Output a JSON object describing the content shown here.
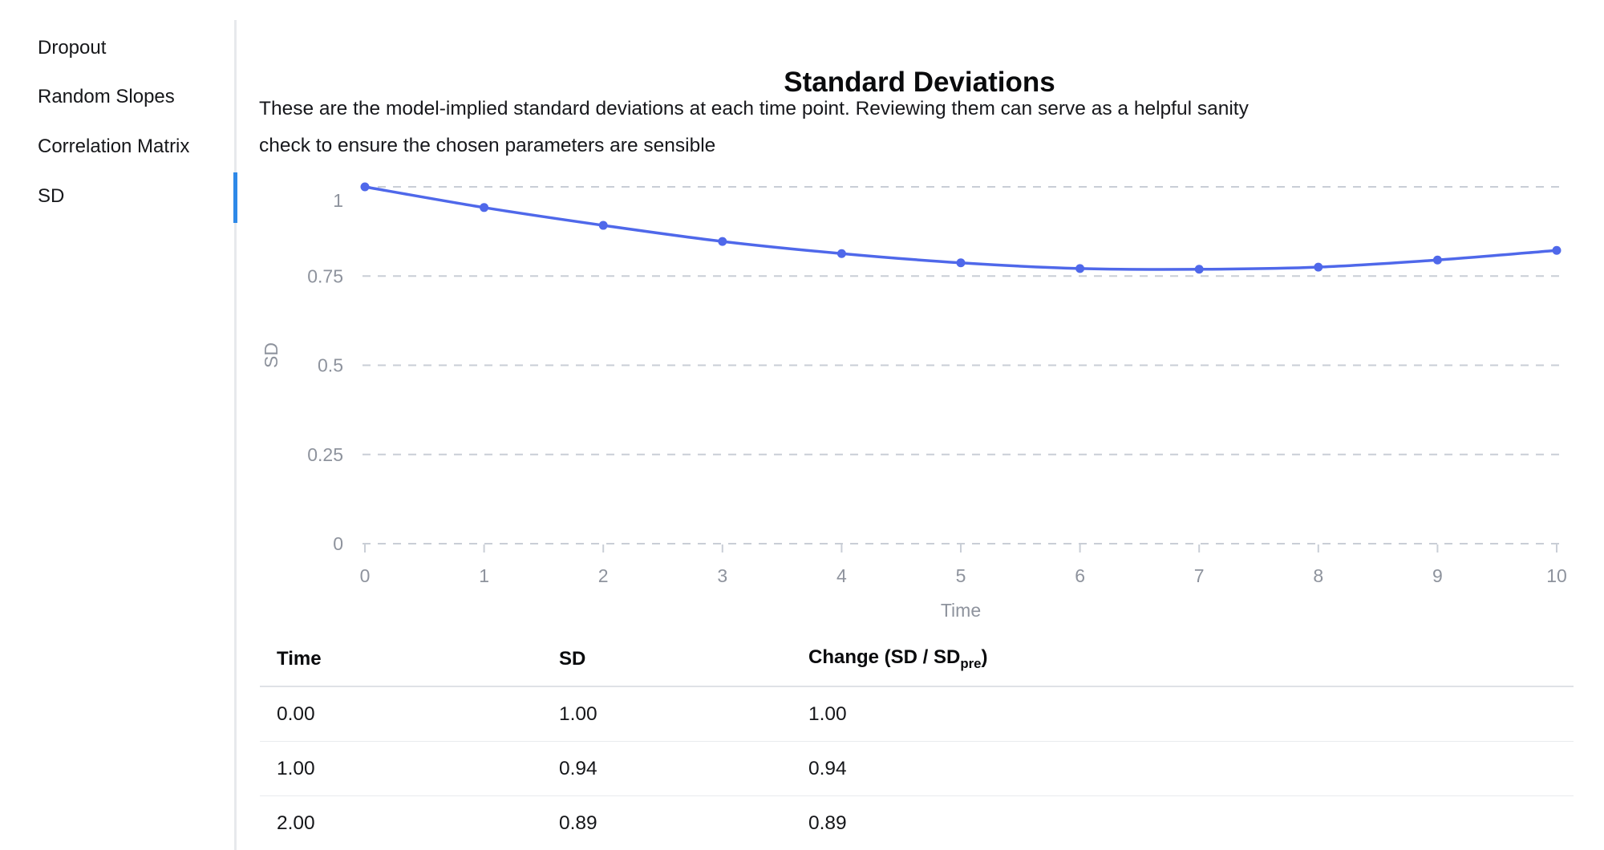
{
  "sidebar": {
    "items": [
      {
        "label": "Dropout",
        "active": false
      },
      {
        "label": "Random Slopes",
        "active": false
      },
      {
        "label": "Correlation Matrix",
        "active": false
      },
      {
        "label": "SD",
        "active": true
      }
    ]
  },
  "header": {
    "title": "Standard Deviations",
    "description": "These are the model-implied standard deviations at each time point. Reviewing them can serve as a helpful sanity check to ensure the chosen parameters are sensible",
    "description_lines": [
      "These are the model-implied standard deviations at each time point. Reviewing them can serve as a helpful sanity",
      "check to ensure the chosen parameters are sensible"
    ]
  },
  "chart_data": {
    "type": "line",
    "x": [
      0,
      1,
      2,
      3,
      4,
      5,
      6,
      7,
      8,
      9,
      10
    ],
    "series": [
      {
        "name": "SD",
        "color": "#4f68ea",
        "values": [
          1.0,
          0.942,
          0.892,
          0.847,
          0.813,
          0.787,
          0.771,
          0.769,
          0.775,
          0.795,
          0.822
        ]
      }
    ],
    "xlabel": "Time",
    "ylabel": "SD",
    "xticks": [
      0,
      1,
      2,
      3,
      4,
      5,
      6,
      7,
      8,
      9,
      10
    ],
    "xtick_labels": [
      "0",
      "1",
      "2",
      "3",
      "4",
      "5",
      "6",
      "7",
      "8",
      "9",
      "10"
    ],
    "yticks": [
      0,
      0.25,
      0.5,
      0.75,
      1
    ],
    "ytick_labels": [
      "0",
      "0.25",
      "0.5",
      "0.75",
      "1"
    ],
    "xlim": [
      0,
      10
    ],
    "ylim": [
      0,
      1.02
    ],
    "grid": "horizontal-dashed",
    "legend": "none",
    "point_markers": true
  },
  "table": {
    "headers": [
      "Time",
      "SD"
    ],
    "header_change": {
      "prefix": "Change (SD / SD",
      "sub": "pre",
      "suffix": ")"
    },
    "rows": [
      [
        "0.00",
        "1.00",
        "1.00"
      ],
      [
        "1.00",
        "0.94",
        "0.94"
      ],
      [
        "2.00",
        "0.89",
        "0.89"
      ]
    ]
  },
  "colors": {
    "line": "#4f68ea",
    "active_indicator": "#2e89e8",
    "grid": "#c9ced6",
    "axis_text": "#8e939d",
    "divider": "#e7e9ec"
  }
}
